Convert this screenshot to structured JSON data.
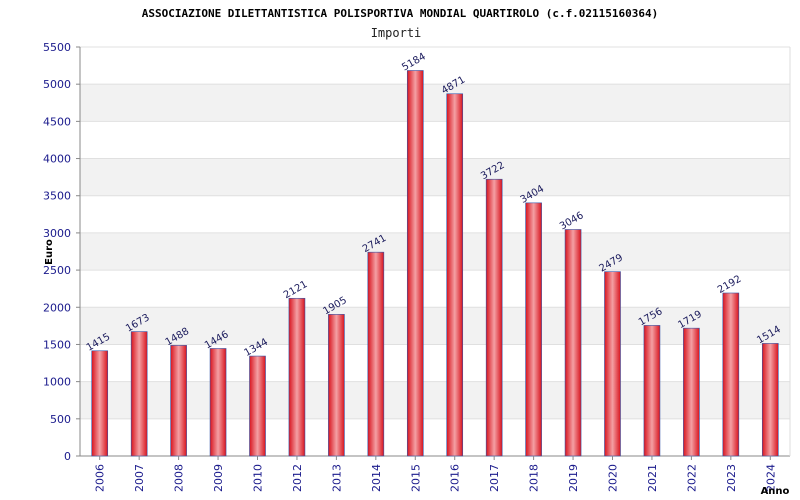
{
  "chart_data": {
    "type": "bar",
    "title": "ASSOCIAZIONE DILETTANTISTICA POLISPORTIVA MONDIAL QUARTIROLO (c.f.02115160364)",
    "subtitle": "Importi",
    "xlabel": "Anno",
    "ylabel": "Euro",
    "categories": [
      "2006",
      "2007",
      "2008",
      "2009",
      "2010",
      "2012",
      "2013",
      "2014",
      "2015",
      "2016",
      "2017",
      "2018",
      "2019",
      "2020",
      "2021",
      "2022",
      "2023",
      "2024"
    ],
    "values": [
      1415,
      1673,
      1488,
      1446,
      1344,
      2121,
      1905,
      2741,
      5184,
      4871,
      3722,
      3404,
      3046,
      2479,
      1756,
      1719,
      2192,
      1514
    ],
    "ylim": [
      0,
      5500
    ],
    "yticks": [
      "0",
      "500",
      "1000",
      "1500",
      "2000",
      "2500",
      "3000",
      "3500",
      "4000",
      "4500",
      "5000",
      "5500"
    ],
    "grid": true,
    "colors": {
      "bar": "#e8202a",
      "bar_highlight": "#f4a0a4",
      "bar_edge": "#3355aa",
      "band": "#f2f2f2",
      "axis": "#888888"
    }
  }
}
